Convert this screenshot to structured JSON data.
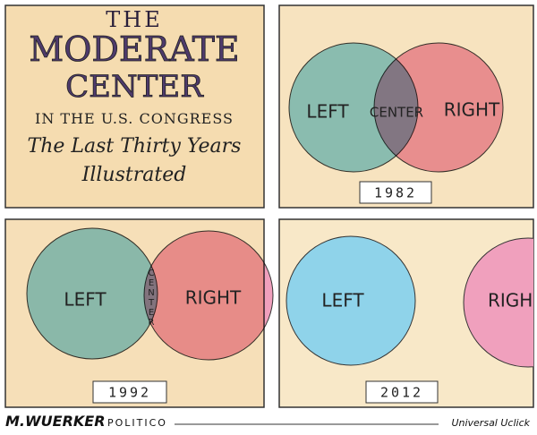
{
  "title_panel": {
    "line1": "THE",
    "line2": "MODERATE",
    "line3": "CENTER",
    "line4": "IN THE U.S. CONGRESS",
    "line5": "The Last Thirty Years",
    "line6": "Illustrated"
  },
  "panels": [
    {
      "left": "LEFT",
      "center": "CENTER",
      "right": "RIGHT",
      "year": "1982"
    },
    {
      "left": "LEFT",
      "center": "CENTER",
      "right": "RIGHT",
      "year": "1992"
    },
    {
      "left": "LEFT",
      "right": "RIGH",
      "year": "2012"
    }
  ],
  "footer": {
    "artist": "M.WUERKER",
    "outlet": "POLITICO",
    "syndicate": "Universal Uclick"
  }
}
